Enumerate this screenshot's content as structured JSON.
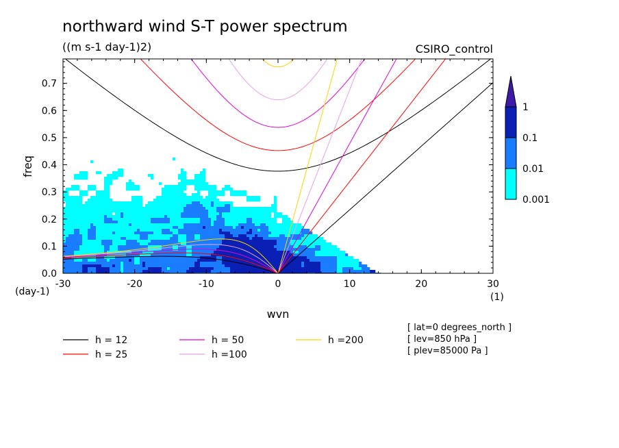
{
  "chart_data": {
    "type": "heatmap",
    "title": "northward wind S-T power spectrum",
    "subtitle": "((m s-1 day-1)2)",
    "model_label": "CSIRO_control",
    "xlabel": "wvn",
    "ylabel": "freq",
    "x_unit_label": "(1)",
    "y_unit_label": "(day-1)",
    "xlim": [
      -30,
      30
    ],
    "ylim": [
      0,
      0.79
    ],
    "x_ticks": [
      -30,
      -20,
      -10,
      0,
      10,
      20,
      30
    ],
    "y_ticks": [
      0.0,
      0.1,
      0.2,
      0.3,
      0.4,
      0.5,
      0.6,
      0.7
    ],
    "x_tick_labels": [
      "-30",
      "-20",
      "-10",
      "0",
      "10",
      "20",
      "30"
    ],
    "y_tick_labels": [
      "0.0",
      "0.1",
      "0.2",
      "0.3",
      "0.4",
      "0.5",
      "0.6",
      "0.7"
    ],
    "colorbar": {
      "levels": [
        "0.001",
        "0.01",
        "0.1",
        "1"
      ],
      "colors": [
        "#00ffff",
        "#1a7cff",
        "#0a1fb4",
        "#3d1aa8"
      ]
    },
    "dispersion_curves": [
      {
        "label": "h = 12",
        "h": 12,
        "color": "#000000"
      },
      {
        "label": "h = 25",
        "h": 25,
        "color": "#ff0000"
      },
      {
        "label": "h = 50",
        "h": 50,
        "color": "#e400d2"
      },
      {
        "label": "h =100",
        "h": 100,
        "color": "#e8a0e6"
      },
      {
        "label": "h =200",
        "h": 200,
        "color": "#ffd200"
      }
    ],
    "annotations": [
      "[ lat=0 degrees_north ]",
      "[ lev=850 hPa ]",
      "[ plev=85000 Pa ]"
    ],
    "blobs": [
      {
        "x": -2,
        "y": 0.03,
        "level": 2
      },
      {
        "x": -3,
        "y": 0.1,
        "level": 1
      },
      {
        "x": -12,
        "y": 0.24,
        "level": 1
      },
      {
        "x": 1,
        "y": 0.02,
        "level": 1
      },
      {
        "x": -8,
        "y": 0.16,
        "level": 1
      },
      {
        "x": -5,
        "y": 0.07,
        "level": 1
      }
    ]
  }
}
